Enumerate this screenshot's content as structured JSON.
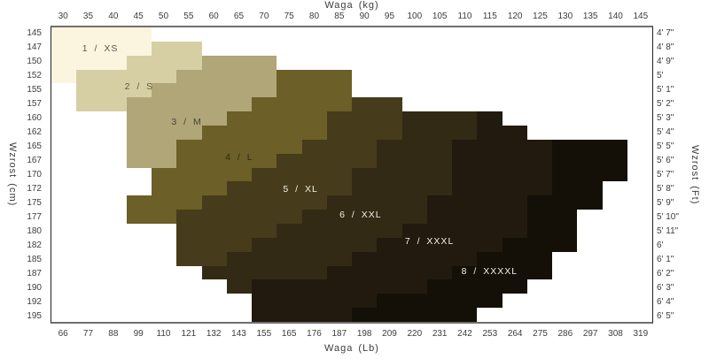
{
  "axes": {
    "top": {
      "title": "Waga  (kg)",
      "ticks": [
        "30",
        "35",
        "40",
        "45",
        "50",
        "55",
        "60",
        "65",
        "70",
        "75",
        "80",
        "85",
        "90",
        "95",
        "100",
        "105",
        "110",
        "115",
        "120",
        "125",
        "130",
        "135",
        "140",
        "145"
      ]
    },
    "bottom": {
      "title": "Waga  (Lb)",
      "ticks": [
        "66",
        "77",
        "88",
        "99",
        "110",
        "121",
        "132",
        "143",
        "155",
        "165",
        "176",
        "187",
        "198",
        "209",
        "220",
        "231",
        "242",
        "253",
        "264",
        "275",
        "286",
        "297",
        "308",
        "319"
      ]
    },
    "left": {
      "title": "Wzrost  (cm)",
      "ticks": [
        "145",
        "147",
        "150",
        "152",
        "155",
        "157",
        "160",
        "162",
        "165",
        "167",
        "170",
        "172",
        "175",
        "177",
        "180",
        "182",
        "185",
        "187",
        "190",
        "192",
        "195"
      ]
    },
    "right": {
      "title": "Wzrost  (Ft)",
      "ticks": [
        "4'  7\"",
        "4'  8\"",
        "4'  9\"",
        "5'",
        "5'  1\"",
        "5'  2\"",
        "5'  3\"",
        "5'  4\"",
        "5'  5\"",
        "5'  6\"",
        "5'  7\"",
        "5'  8\"",
        "5'  9\"",
        "5'  10\"",
        "5'  11\"",
        "6'",
        "6'  1\"",
        "6'  2\"",
        "6'  3\"",
        "6'  4\"",
        "6'  5\""
      ]
    }
  },
  "palette": {
    "0": "#ffffff",
    "1": "#fbf5e0",
    "2": "#d7cfa4",
    "3": "#b0a678",
    "4": "#6c5f27",
    "5": "#463c1b",
    "6": "#322a15",
    "7": "#221a0e",
    "8": "#141008"
  },
  "chart_data": {
    "type": "heatmap",
    "title": "",
    "xlabel_top": "Waga (kg)",
    "xlabel_bottom": "Waga (Lb)",
    "ylabel_left": "Wzrost (cm)",
    "ylabel_right": "Wzrost (Ft)",
    "x_kg": [
      30,
      35,
      40,
      45,
      50,
      55,
      60,
      65,
      70,
      75,
      80,
      85,
      90,
      95,
      100,
      105,
      110,
      115,
      120,
      125,
      130,
      135,
      140,
      145
    ],
    "x_lb": [
      66,
      77,
      88,
      99,
      110,
      121,
      132,
      143,
      155,
      165,
      176,
      187,
      198,
      209,
      220,
      231,
      242,
      253,
      264,
      275,
      286,
      297,
      308,
      319
    ],
    "y_cm": [
      145,
      147,
      150,
      152,
      155,
      157,
      160,
      162,
      165,
      167,
      170,
      172,
      175,
      177,
      180,
      182,
      185,
      187,
      190,
      192,
      195
    ],
    "sizes": [
      {
        "value": 1,
        "label": "1  /  XS",
        "color": "#fbf5e0"
      },
      {
        "value": 2,
        "label": "2  /  S",
        "color": "#d7cfa4"
      },
      {
        "value": 3,
        "label": "3  /  M",
        "color": "#b0a678"
      },
      {
        "value": 4,
        "label": "4  /  L",
        "color": "#6c5f27"
      },
      {
        "value": 5,
        "label": "5  /  XL",
        "color": "#463c1b"
      },
      {
        "value": 6,
        "label": "6  /  XXL",
        "color": "#322a15"
      },
      {
        "value": 7,
        "label": "7  /  XXXL",
        "color": "#221a0e"
      },
      {
        "value": 8,
        "label": "8  /  XXXXL",
        "color": "#141008"
      }
    ],
    "grid": [
      "111100000000000000000000",
      "111122000000000000000000",
      "111222333000000000000000",
      "122223333444000000000000",
      "022233333444000000000000",
      "022333334444550000000000",
      "000333344445556667000000",
      "000333444445556667700000",
      "000334444455566677778880",
      "000334444555566677778880",
      "000044445555666677778880",
      "000044455555666677778800",
      "000444555556666777788800",
      "000445555566666777788000",
      "000005555666667777788000",
      "000005556666677777888000",
      "000005566666777778880000",
      "000000666667777788880000",
      "000000067777777888800000",
      "000000007777788888000000",
      "000000007777888880000000"
    ],
    "labels": [
      {
        "text": "1  /  XS",
        "col": 1.95,
        "row": 1.5,
        "text_color": "#5a5748"
      },
      {
        "text": "2  /  S",
        "col": 3.5,
        "row": 4.2,
        "text_color": "#5a5748"
      },
      {
        "text": "3  /  M",
        "col": 5.4,
        "row": 6.75,
        "text_color": "#4a4636"
      },
      {
        "text": "4  /  L",
        "col": 7.5,
        "row": 9.3,
        "text_color": "#2f2a10"
      },
      {
        "text": "5  /  XL",
        "col": 9.95,
        "row": 11.55,
        "text_color": "#f2efe6"
      },
      {
        "text": "6  /  XXL",
        "col": 12.35,
        "row": 13.4,
        "text_color": "#f2efe6"
      },
      {
        "text": "7  /  XXXL",
        "col": 15.1,
        "row": 15.25,
        "text_color": "#f2efe6"
      },
      {
        "text": "8  /  XXXXL",
        "col": 17.5,
        "row": 17.4,
        "text_color": "#f2efe6"
      }
    ]
  }
}
